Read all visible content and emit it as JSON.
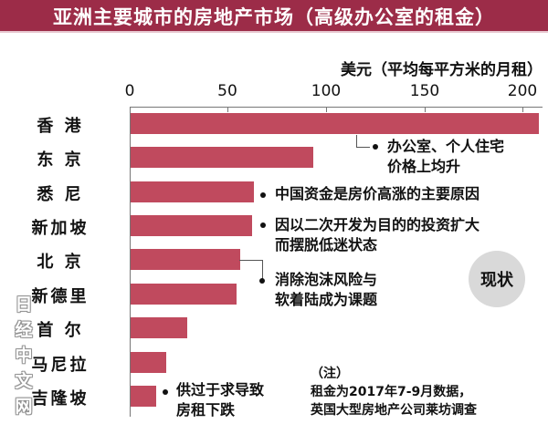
{
  "chart_data": {
    "type": "bar",
    "orientation": "horizontal",
    "title": "亚洲主要城市的房地产市场（高级办公室的租金）",
    "xlabel": "美元（平均每平方米的月租）",
    "ylabel": "",
    "xlim": [
      0,
      210
    ],
    "xticks": [
      0,
      50,
      100,
      150,
      200
    ],
    "grid": false,
    "categories": [
      "香港",
      "东京",
      "悉尼",
      "新加坡",
      "北京",
      "新德里",
      "首尔",
      "马尼拉",
      "吉隆坡"
    ],
    "values": [
      208,
      93,
      63,
      62,
      56,
      54,
      29,
      18,
      13
    ],
    "bar_color": "#c04a5e",
    "annotations": [
      {
        "targets": [
          "香港",
          "东京"
        ],
        "text": "办公室、个人住宅价格上均升"
      },
      {
        "targets": [
          "悉尼"
        ],
        "text": "中国资金是房价高涨的主要原因"
      },
      {
        "targets": [
          "新加坡"
        ],
        "text": "因以二次开发为目的的投资扩大而摆脱低迷状态"
      },
      {
        "targets": [
          "北京",
          "新德里"
        ],
        "text": "消除泡沫风险与软着陆成为课题"
      },
      {
        "targets": [
          "吉隆坡"
        ],
        "text": "供过于求导致房租下跌"
      }
    ]
  },
  "header": {
    "title": "亚洲主要城市的房地产市场（高级办公室的租金）",
    "color": "#9c2c48"
  },
  "axis": {
    "unit": "美元（平均每平方米的月租）",
    "ticks": [
      "0",
      "50",
      "100",
      "150",
      "200"
    ]
  },
  "cities": [
    "香 港",
    "东 京",
    "悉 尼",
    "新加坡",
    "北 京",
    "新德里",
    "首 尔",
    "马尼拉",
    "吉隆坡"
  ],
  "notes": {
    "hk_tokyo": [
      "办公室、个人住宅",
      "价格上均升"
    ],
    "sydney": [
      "中国资金是房价高涨的主要原因"
    ],
    "singapore": [
      "因以二次开发为目的的投资扩大",
      "而摆脱低迷状态"
    ],
    "beijing": [
      "消除泡沫风险与",
      "软着陆成为课题"
    ],
    "kl": [
      "供过于求导致",
      "房租下跌"
    ]
  },
  "status_badge": "现状",
  "footnote": {
    "label": "（注）",
    "lines": [
      "租金为2017年7-9月数据，",
      "英国大型房地产公司莱坊调查"
    ]
  },
  "watermark": [
    "日",
    "经",
    "中",
    "文",
    "网"
  ]
}
